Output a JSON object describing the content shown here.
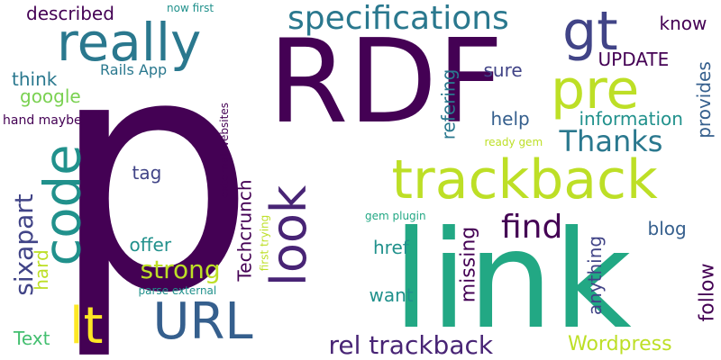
{
  "colors": {
    "background": "#ffffff",
    "palette": [
      "#440154",
      "#482475",
      "#414487",
      "#355f8d",
      "#2a788e",
      "#21918c",
      "#22a884",
      "#44bf70",
      "#7ad151",
      "#bddf26",
      "#fde725"
    ]
  },
  "words": [
    {
      "id": "p",
      "text": "p"
    },
    {
      "id": "RDF",
      "text": "RDF"
    },
    {
      "id": "link",
      "text": "link"
    },
    {
      "id": "trackback",
      "text": "trackback"
    },
    {
      "id": "really",
      "text": "really"
    },
    {
      "id": "code",
      "text": "code"
    },
    {
      "id": "pre",
      "text": "pre"
    },
    {
      "id": "look",
      "text": "look"
    },
    {
      "id": "gt",
      "text": "gt"
    },
    {
      "id": "URL",
      "text": "URL"
    },
    {
      "id": "lt",
      "text": "lt"
    },
    {
      "id": "specifications",
      "text": "specifications"
    },
    {
      "id": "rel trackback",
      "text": "rel trackback"
    },
    {
      "id": "sixapart",
      "text": "sixapart"
    },
    {
      "id": "strong",
      "text": "strong"
    },
    {
      "id": "Thanks",
      "text": "Thanks"
    },
    {
      "id": "find",
      "text": "find"
    },
    {
      "id": "described",
      "text": "described"
    },
    {
      "id": "Wordpress",
      "text": "Wordpress"
    },
    {
      "id": "Techcrunch",
      "text": "Techcrunch"
    },
    {
      "id": "know",
      "text": "know"
    },
    {
      "id": "UPDATE",
      "text": "UPDATE"
    },
    {
      "id": "provides",
      "text": "provides"
    },
    {
      "id": "information",
      "text": "information"
    },
    {
      "id": "follow",
      "text": "follow"
    },
    {
      "id": "missing",
      "text": "missing"
    },
    {
      "id": "anything",
      "text": "anything"
    },
    {
      "id": "blog",
      "text": "blog"
    },
    {
      "id": "href",
      "text": "href"
    },
    {
      "id": "want",
      "text": "want"
    },
    {
      "id": "offer",
      "text": "offer"
    },
    {
      "id": "tag",
      "text": "tag"
    },
    {
      "id": "help",
      "text": "help"
    },
    {
      "id": "sure",
      "text": "sure"
    },
    {
      "id": "refering",
      "text": "refering"
    },
    {
      "id": "google",
      "text": "google"
    },
    {
      "id": "think",
      "text": "think"
    },
    {
      "id": "Text",
      "text": "Text"
    },
    {
      "id": "hard",
      "text": "hard"
    },
    {
      "id": "Rails App",
      "text": "Rails App"
    },
    {
      "id": "hand maybe",
      "text": "hand maybe"
    },
    {
      "id": "now first",
      "text": "now first"
    },
    {
      "id": "external websites",
      "text": "external websites"
    },
    {
      "id": "first trying",
      "text": "first trying"
    },
    {
      "id": "parse external",
      "text": "parse external"
    },
    {
      "id": "gem plugin",
      "text": "gem plugin"
    },
    {
      "id": "ready gem",
      "text": "ready gem"
    }
  ]
}
